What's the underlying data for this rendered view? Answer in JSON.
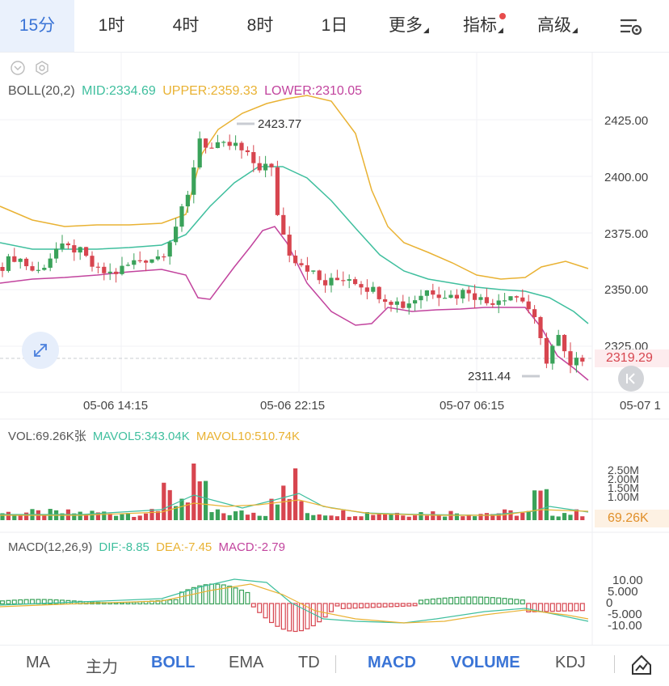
{
  "tabs": [
    {
      "label": "15分",
      "active": true
    },
    {
      "label": "1时"
    },
    {
      "label": "4时"
    },
    {
      "label": "8时"
    },
    {
      "label": "1日"
    },
    {
      "label": "更多"
    },
    {
      "label": "指标"
    },
    {
      "label": "高级"
    }
  ],
  "boll": {
    "label": "BOLL(20,2)",
    "mid": "MID:2334.69",
    "upper": "UPPER:2359.33",
    "lower": "LOWER:2310.05"
  },
  "price_axis": [
    "2425.00",
    "2400.00",
    "2375.00",
    "2350.00",
    "2325.00"
  ],
  "current_price": "2319.29",
  "high_label": "2423.77",
  "low_label": "2311.44",
  "time_axis": [
    "05-06 14:15",
    "05-06 22:15",
    "05-07 06:15",
    "05-07 1"
  ],
  "vol": {
    "label": "VOL:69.26K张",
    "mavol5": "MAVOL5:343.04K",
    "mavol10": "MAVOL10:510.74K",
    "axis": [
      "2.50M",
      "2.00M",
      "1.50M",
      "1.00M"
    ],
    "current": "69.26K"
  },
  "macd": {
    "label": "MACD(12,26,9)",
    "dif": "DIF:-8.85",
    "dea": "DEA:-7.45",
    "macd": "MACD:-2.79",
    "axis": [
      "10.00",
      "5.000",
      "0",
      "-5.000",
      "-10.00"
    ]
  },
  "bottom_tabs": [
    "MA",
    "主力",
    "BOLL",
    "EMA",
    "TD",
    "MACD",
    "VOLUME",
    "KDJ"
  ],
  "colors": {
    "up": "#3aa25a",
    "down": "#d7454f",
    "mid": "#3fbf9e",
    "upper": "#e9b233",
    "lower": "#c2449e",
    "accent": "#3a74d6"
  }
}
